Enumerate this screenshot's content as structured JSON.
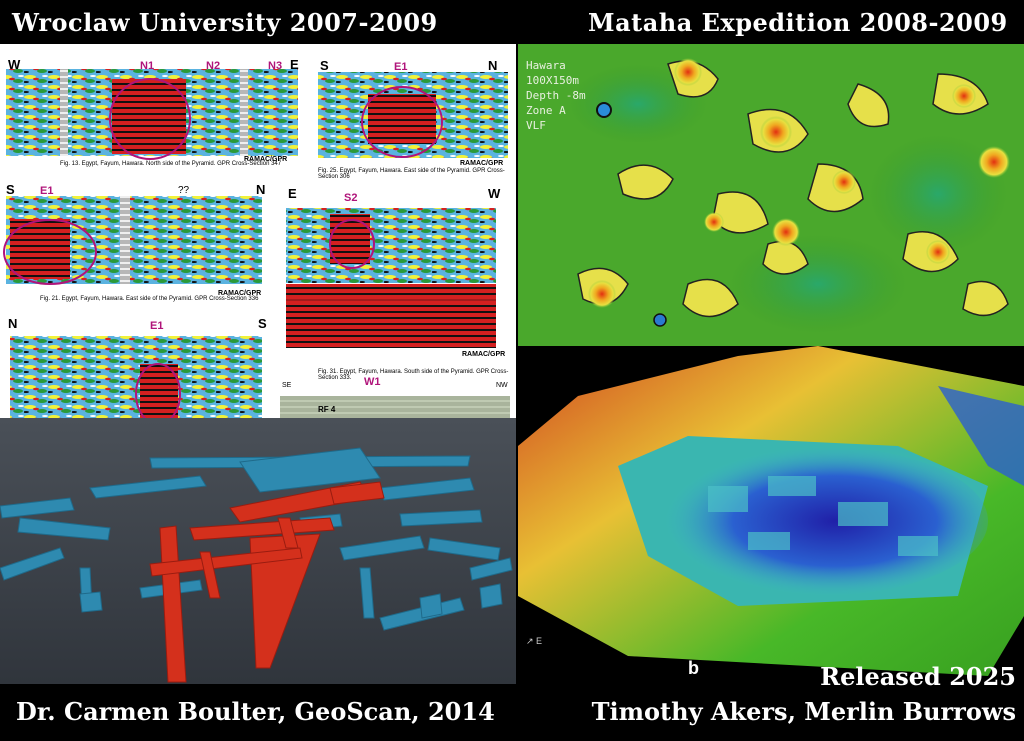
{
  "titles": {
    "top_left": "Wroclaw University 2007-2009",
    "top_right": "Mataha Expedition 2008-2009",
    "bottom_left": "Dr. Carmen Boulter, GeoScan, 2014",
    "bottom_right_line1": "Released 2025",
    "bottom_right_line2": "Timothy Akers, Merlin Burrows"
  },
  "gpr": {
    "panel1": {
      "left_dir": "W",
      "right_dir": "E",
      "anomalies": [
        "N1",
        "N2",
        "N3"
      ],
      "caption": "Fig. 13. Egypt, Fayum, Hawara. North side of the Pyramid. GPR Cross-Section 347",
      "ramac": "RAMAC/GPR"
    },
    "panel2": {
      "left_dir": "S",
      "right_dir": "N",
      "anomaly": "E1",
      "caption": "Fig. 25. Egypt, Fayum, Hawara. East side of the Pyramid. GPR Cross-Section 306",
      "ramac": "RAMAC/GPR"
    },
    "panel3": {
      "left_dir": "S",
      "right_dir": "N",
      "anomaly": "E1",
      "caption": "Fig. 21. Egypt, Fayum, Hawara. East side of the Pyramid. GPR Cross-Section 336",
      "ramac": "RAMAC/GPR",
      "marks": "??"
    },
    "panel4": {
      "left_dir": "E",
      "right_dir": "W",
      "anomaly": "S2",
      "caption": "Fig. 31. Egypt, Fayum, Hawara. South side of the Pyramid. GPR Cross-Section 333.",
      "ramac": "RAMAC/GPR"
    },
    "panel5": {
      "left_dir": "N",
      "right_dir": "S",
      "anomaly": "E1"
    },
    "panel6": {
      "left_dir": "SE",
      "right_dir": "NW",
      "anomaly": "W1",
      "label": "RF 4"
    }
  },
  "mataha": {
    "lines": [
      "Hawara",
      "100X150m",
      "Depth -8m",
      "Zone A",
      "VLF"
    ]
  },
  "terrain": {
    "label": "b"
  }
}
